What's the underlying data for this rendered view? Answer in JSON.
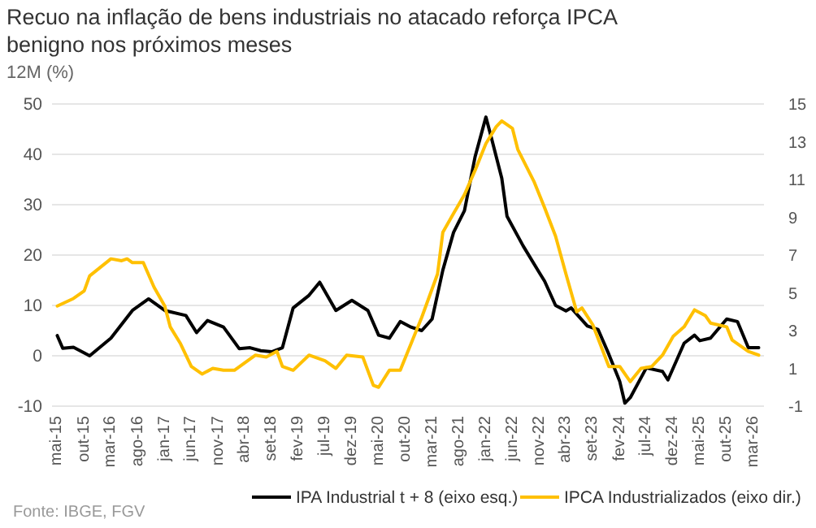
{
  "chart_data": {
    "type": "line",
    "title": "Recuo na inflação de bens industriais no atacado reforça IPCA benigno nos próximos meses",
    "ylabel": "12M (%)",
    "annotations": [
      "Fonte: IBGE, FGV"
    ],
    "xlim": [
      "2015-04",
      "2026-05"
    ],
    "xticks": [
      {
        "value": "2015-05",
        "label": "mai-15"
      },
      {
        "value": "2015-10",
        "label": "out-15"
      },
      {
        "value": "2016-03",
        "label": "mar-16"
      },
      {
        "value": "2016-08",
        "label": "ago-16"
      },
      {
        "value": "2017-01",
        "label": "jan-17"
      },
      {
        "value": "2017-06",
        "label": "jun-17"
      },
      {
        "value": "2017-11",
        "label": "nov-17"
      },
      {
        "value": "2018-04",
        "label": "abr-18"
      },
      {
        "value": "2018-09",
        "label": "set-18"
      },
      {
        "value": "2019-02",
        "label": "fev-19"
      },
      {
        "value": "2019-07",
        "label": "jul-19"
      },
      {
        "value": "2019-12",
        "label": "dez-19"
      },
      {
        "value": "2020-05",
        "label": "mai-20"
      },
      {
        "value": "2020-10",
        "label": "out-20"
      },
      {
        "value": "2021-03",
        "label": "mar-21"
      },
      {
        "value": "2021-08",
        "label": "ago-21"
      },
      {
        "value": "2022-01",
        "label": "jan-22"
      },
      {
        "value": "2022-06",
        "label": "jun-22"
      },
      {
        "value": "2022-11",
        "label": "nov-22"
      },
      {
        "value": "2023-04",
        "label": "abr-23"
      },
      {
        "value": "2023-09",
        "label": "set-23"
      },
      {
        "value": "2024-02",
        "label": "fev-24"
      },
      {
        "value": "2024-07",
        "label": "jul-24"
      },
      {
        "value": "2024-12",
        "label": "dez-24"
      },
      {
        "value": "2025-05",
        "label": "mai-25"
      },
      {
        "value": "2025-10",
        "label": "out-25"
      },
      {
        "value": "2026-03",
        "label": "mar-26"
      }
    ],
    "ylim": [
      -10,
      50
    ],
    "yticks": [
      -10,
      0,
      10,
      20,
      30,
      40,
      50
    ],
    "y2lim": [
      -1,
      15
    ],
    "y2ticks": [
      -1,
      1,
      3,
      5,
      7,
      9,
      11,
      13,
      15
    ],
    "grid": "y",
    "legend": "bottom right",
    "line_style": "solid",
    "marker": "none",
    "series": [
      {
        "name": "IPA Industrial t + 8 (eixo esq.)",
        "color": "#000000",
        "x": [
          "2015-05",
          "2015-06",
          "2015-08",
          "2015-11",
          "2016-03",
          "2016-07",
          "2016-10",
          "2017-01",
          "2017-05",
          "2017-07",
          "2017-09",
          "2017-12",
          "2018-03",
          "2018-05",
          "2018-07",
          "2018-09",
          "2018-11",
          "2019-01",
          "2019-04",
          "2019-06",
          "2019-09",
          "2019-12",
          "2020-03",
          "2020-05",
          "2020-07",
          "2020-09",
          "2020-11",
          "2021-01",
          "2021-03",
          "2021-05",
          "2021-07",
          "2021-09",
          "2021-11",
          "2022-01",
          "2022-02",
          "2022-04",
          "2022-05",
          "2022-08",
          "2022-11",
          "2022-12",
          "2023-02",
          "2023-04",
          "2023-05",
          "2023-08",
          "2023-10",
          "2023-12",
          "2024-02",
          "2024-03",
          "2024-04",
          "2024-07",
          "2024-10",
          "2024-11",
          "2025-02",
          "2025-04",
          "2025-05",
          "2025-07",
          "2025-10",
          "2025-12",
          "2026-02",
          "2026-04"
        ],
        "values": [
          4,
          1.5,
          1.7,
          0,
          3.5,
          9,
          11.3,
          9,
          8,
          4.6,
          7,
          5.7,
          1.4,
          1.6,
          1,
          0.8,
          1.6,
          9.5,
          12,
          14.6,
          9,
          11,
          9,
          4.1,
          3.5,
          6.8,
          5.7,
          5,
          7.3,
          17,
          24.5,
          28.8,
          39.6,
          47.4,
          43.3,
          35.3,
          27.7,
          21.8,
          16.5,
          14.8,
          10,
          8.9,
          9.5,
          5.9,
          5.2,
          0.3,
          -5.1,
          -9.4,
          -8.3,
          -2.4,
          -3.1,
          -4.8,
          2.5,
          4.1,
          3,
          3.5,
          7.3,
          6.8,
          1.6,
          1.6
        ]
      },
      {
        "name": "IPCA Industrializados (eixo dir.)",
        "color": "#ffc000",
        "axis": "y2",
        "x": [
          "2015-05",
          "2015-08",
          "2015-10",
          "2015-11",
          "2016-03",
          "2016-05",
          "2016-06",
          "2016-07",
          "2016-09",
          "2016-11",
          "2017-01",
          "2017-02",
          "2017-04",
          "2017-06",
          "2017-08",
          "2017-10",
          "2017-12",
          "2018-02",
          "2018-04",
          "2018-06",
          "2018-08",
          "2018-10",
          "2018-11",
          "2019-01",
          "2019-04",
          "2019-07",
          "2019-09",
          "2019-11",
          "2020-02",
          "2020-04",
          "2020-05",
          "2020-07",
          "2020-09",
          "2020-11",
          "2021-01",
          "2021-04",
          "2021-05",
          "2021-07",
          "2021-09",
          "2021-11",
          "2022-01",
          "2022-03",
          "2022-04",
          "2022-06",
          "2022-07",
          "2022-10",
          "2022-12",
          "2023-02",
          "2023-04",
          "2023-06",
          "2023-07",
          "2023-09",
          "2023-12",
          "2024-02",
          "2024-04",
          "2024-06",
          "2024-08",
          "2024-10",
          "2024-12",
          "2025-02",
          "2025-04",
          "2025-06",
          "2025-07",
          "2025-10",
          "2025-11",
          "2026-02",
          "2026-04"
        ],
        "values": [
          4.3,
          4.7,
          5.1,
          5.9,
          6.8,
          6.7,
          6.8,
          6.6,
          6.6,
          5.3,
          4.3,
          3.2,
          2.3,
          1.1,
          0.7,
          1.0,
          0.9,
          0.9,
          1.3,
          1.7,
          1.6,
          1.9,
          1.1,
          0.9,
          1.7,
          1.4,
          1.0,
          1.7,
          1.6,
          0.1,
          0.0,
          0.9,
          0.9,
          2.3,
          3.7,
          6.0,
          8.2,
          9.2,
          10.2,
          11.5,
          12.9,
          13.8,
          14.1,
          13.7,
          12.6,
          10.9,
          9.5,
          8.0,
          6.0,
          4.0,
          4.2,
          3.3,
          1.1,
          1.1,
          0.3,
          1.0,
          1.1,
          1.7,
          2.7,
          3.2,
          4.1,
          3.8,
          3.4,
          3.2,
          2.5,
          1.9,
          1.7
        ]
      }
    ]
  }
}
